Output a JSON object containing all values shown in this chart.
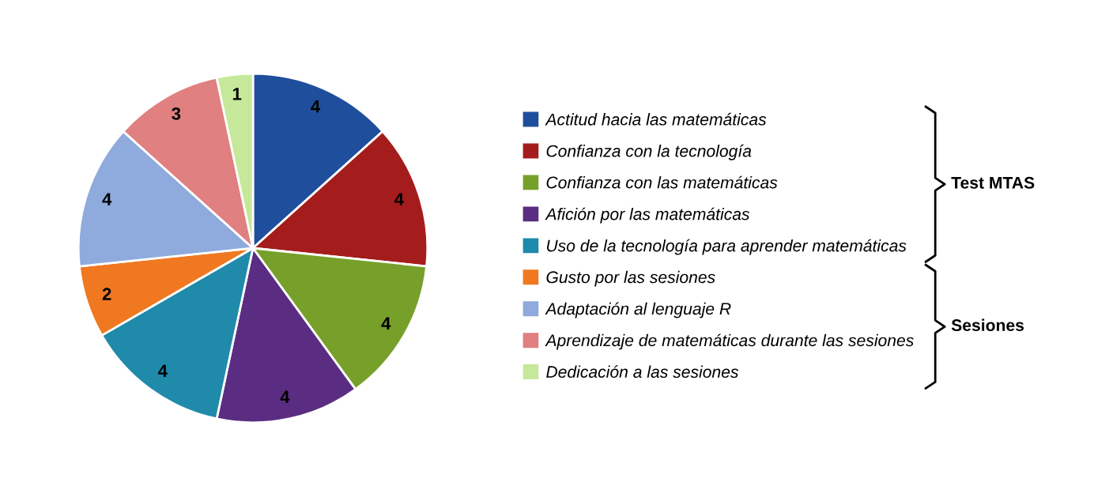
{
  "chart_data": {
    "type": "pie",
    "categories": [
      "Actitud hacia las matemáticas",
      "Confianza con la tecnología",
      "Confianza con las matemáticas",
      "Afición por las matemáticas",
      "Uso de la tecnología para aprender matemáticas",
      "Gusto por las sesiones",
      "Adaptación al lenguaje R",
      "Aprendizaje de matemáticas durante las sesiones",
      "Dedicación a las sesiones"
    ],
    "values": [
      4,
      4,
      4,
      4,
      4,
      2,
      4,
      3,
      1
    ],
    "colors": [
      "#1f4e9c",
      "#a51c1c",
      "#77a02b",
      "#5a2d82",
      "#1f8aaa",
      "#f07820",
      "#8faadc",
      "#e08080",
      "#c6e89a"
    ],
    "data_labels": true,
    "legend": "right",
    "annotations": [
      "Test MTAS",
      "Sesiones"
    ]
  }
}
